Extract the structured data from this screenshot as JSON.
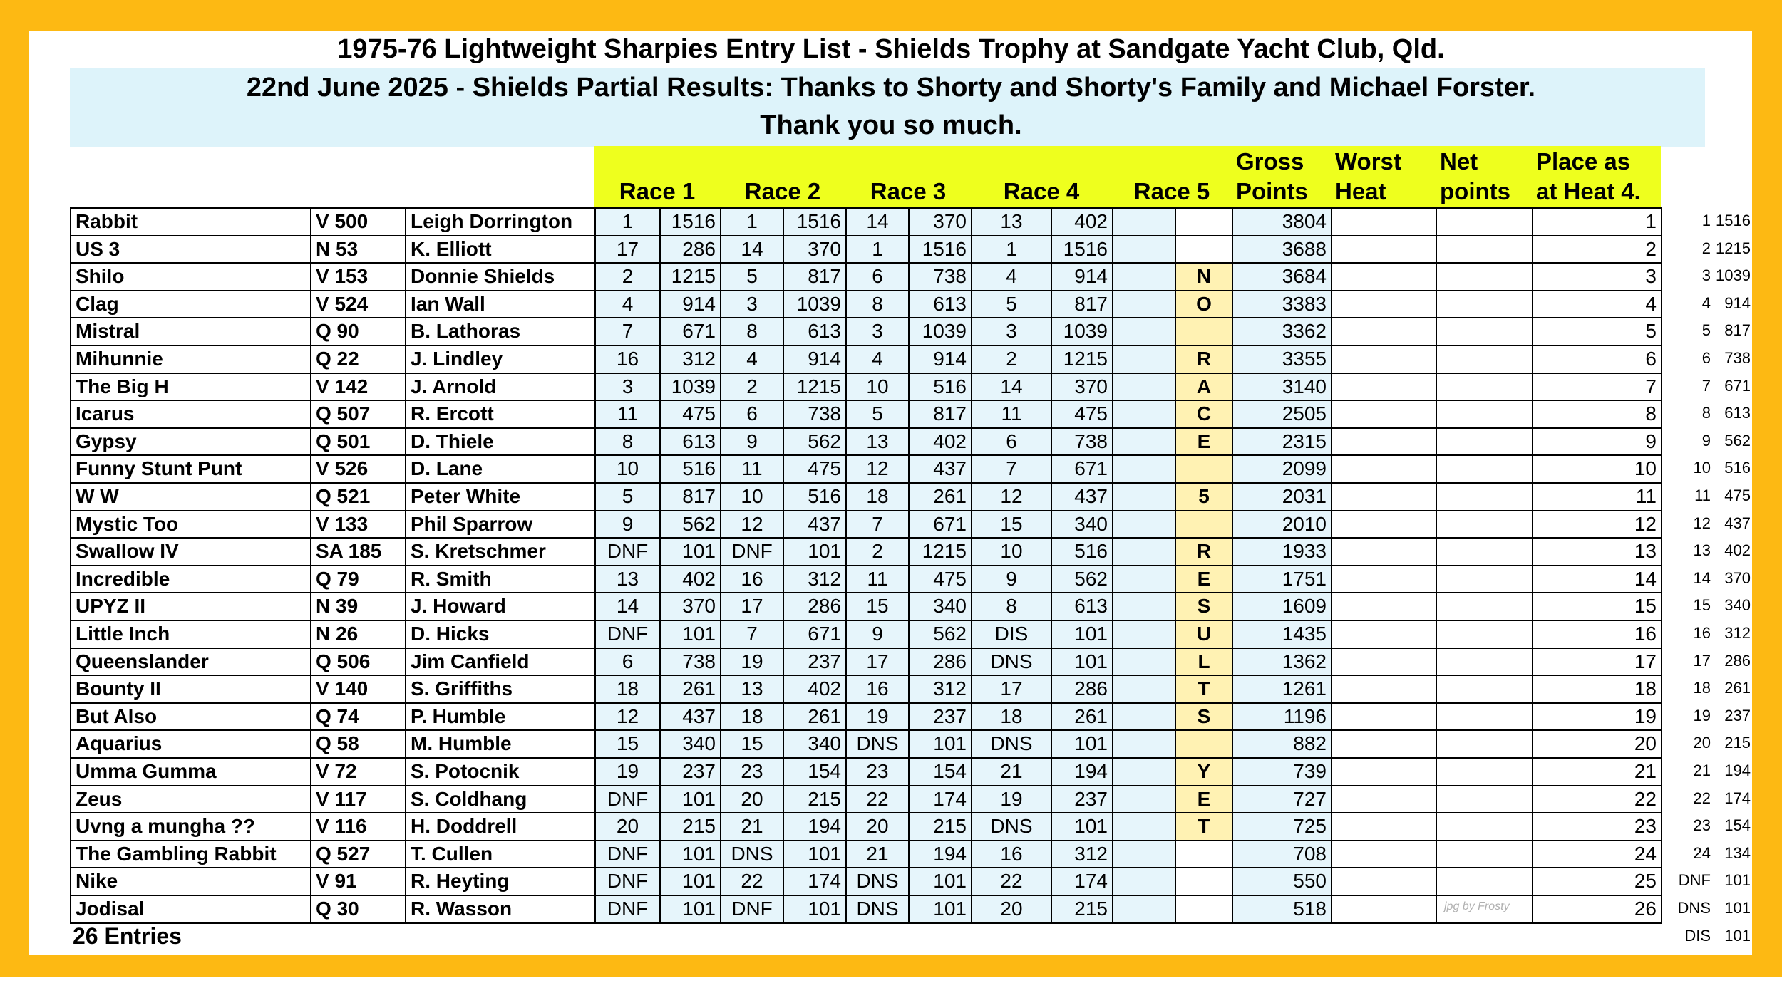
{
  "header": {
    "title": "1975-76 Lightweight Sharpies Entry List - Shields Trophy at Sandgate Yacht Club, Qld.",
    "subtitle": "22nd June 2025 - Shields Partial Results: Thanks to Shorty and Shorty's Family and Michael Forster.",
    "thanks": "Thank you so much."
  },
  "columns": {
    "races": [
      "Race 1",
      "Race 2",
      "Race 3",
      "Race 4",
      "Race 5"
    ],
    "gross": [
      "Gross",
      "Points"
    ],
    "worst": [
      "Worst",
      "Heat"
    ],
    "net": [
      "Net",
      "points"
    ],
    "place": [
      "Place as",
      "at Heat 4."
    ]
  },
  "rows": [
    [
      "Rabbit",
      "V 500",
      "Leigh Dorrington",
      1,
      1516,
      1,
      1516,
      14,
      370,
      13,
      402,
      null,
      3804,
      1
    ],
    [
      "US 3",
      "N 53",
      "K. Elliott",
      17,
      286,
      14,
      370,
      1,
      1516,
      1,
      1516,
      null,
      3688,
      2
    ],
    [
      "Shilo",
      "V 153",
      "Donnie Shields",
      2,
      1215,
      5,
      817,
      6,
      738,
      4,
      914,
      "N",
      3684,
      3
    ],
    [
      "Clag",
      "V 524",
      "Ian Wall",
      4,
      914,
      3,
      1039,
      8,
      613,
      5,
      817,
      "O",
      3383,
      4
    ],
    [
      "Mistral",
      "Q 90",
      "B. Lathoras",
      7,
      671,
      8,
      613,
      3,
      1039,
      3,
      1039,
      null,
      3362,
      5
    ],
    [
      "Mihunnie",
      "Q 22",
      "J. Lindley",
      16,
      312,
      4,
      914,
      4,
      914,
      2,
      1215,
      "R",
      3355,
      6
    ],
    [
      "The Big H",
      "V 142",
      "J. Arnold",
      3,
      1039,
      2,
      1215,
      10,
      516,
      14,
      370,
      "A",
      3140,
      7
    ],
    [
      "Icarus",
      "Q 507",
      "R. Ercott",
      11,
      475,
      6,
      738,
      5,
      817,
      11,
      475,
      "C",
      2505,
      8
    ],
    [
      "Gypsy",
      "Q 501",
      "D. Thiele",
      8,
      613,
      9,
      562,
      13,
      402,
      6,
      738,
      "E",
      2315,
      9
    ],
    [
      "Funny Stunt Punt",
      "V 526",
      "D. Lane",
      10,
      516,
      11,
      475,
      12,
      437,
      7,
      671,
      null,
      2099,
      10
    ],
    [
      "W W",
      "Q 521",
      "Peter White",
      5,
      817,
      10,
      516,
      18,
      261,
      12,
      437,
      "5",
      2031,
      11
    ],
    [
      "Mystic Too",
      "V 133",
      "Phil Sparrow",
      9,
      562,
      12,
      437,
      7,
      671,
      15,
      340,
      null,
      2010,
      12
    ],
    [
      "Swallow IV",
      "SA 185",
      "S. Kretschmer",
      "DNF",
      101,
      "DNF",
      101,
      2,
      1215,
      10,
      516,
      "R",
      1933,
      13
    ],
    [
      "Incredible",
      "Q 79",
      "R. Smith",
      13,
      402,
      16,
      312,
      11,
      475,
      9,
      562,
      "E",
      1751,
      14
    ],
    [
      "UPYZ II",
      "N 39",
      "J. Howard",
      14,
      370,
      17,
      286,
      15,
      340,
      8,
      613,
      "S",
      1609,
      15
    ],
    [
      "Little Inch",
      "N 26",
      "D. Hicks",
      "DNF",
      101,
      7,
      671,
      9,
      562,
      "DIS",
      101,
      "U",
      1435,
      16
    ],
    [
      "Queenslander",
      "Q 506",
      "Jim Canfield",
      6,
      738,
      19,
      237,
      17,
      286,
      "DNS",
      101,
      "L",
      1362,
      17
    ],
    [
      "Bounty II",
      "V 140",
      "S. Griffiths",
      18,
      261,
      13,
      402,
      16,
      312,
      17,
      286,
      "T",
      1261,
      18
    ],
    [
      "But Also",
      "Q 74",
      "P. Humble",
      12,
      437,
      18,
      261,
      19,
      237,
      18,
      261,
      "S",
      1196,
      19
    ],
    [
      "Aquarius",
      "Q 58",
      "M. Humble",
      15,
      340,
      15,
      340,
      "DNS",
      101,
      "DNS",
      101,
      null,
      882,
      20
    ],
    [
      "Umma Gumma",
      "V 72",
      "S. Potocnik",
      19,
      237,
      23,
      154,
      23,
      154,
      21,
      194,
      "Y",
      739,
      21
    ],
    [
      "Zeus",
      "V 117",
      "S. Coldhang",
      "DNF",
      101,
      20,
      215,
      22,
      174,
      19,
      237,
      "E",
      727,
      22
    ],
    [
      "Uvng a mungha ??",
      "V 116",
      "H. Doddrell",
      20,
      215,
      21,
      194,
      20,
      215,
      "DNS",
      101,
      "T",
      725,
      23
    ],
    [
      "The Gambling Rabbit",
      "Q 527",
      "T. Cullen",
      "DNF",
      101,
      "DNS",
      101,
      21,
      194,
      16,
      312,
      null,
      708,
      24
    ],
    [
      "Nike",
      "V 91",
      "R. Heyting",
      "DNF",
      101,
      22,
      174,
      "DNS",
      101,
      22,
      174,
      null,
      550,
      25
    ],
    [
      "Jodisal",
      "Q 30",
      "R. Wasson",
      "DNF",
      101,
      "DNF",
      101,
      "DNS",
      101,
      20,
      215,
      null,
      518,
      26
    ]
  ],
  "points_scale": [
    [
      1,
      1516
    ],
    [
      2,
      1215
    ],
    [
      3,
      1039
    ],
    [
      4,
      914
    ],
    [
      5,
      817
    ],
    [
      6,
      738
    ],
    [
      7,
      671
    ],
    [
      8,
      613
    ],
    [
      9,
      562
    ],
    [
      10,
      516
    ],
    [
      11,
      475
    ],
    [
      12,
      437
    ],
    [
      13,
      402
    ],
    [
      14,
      370
    ],
    [
      15,
      340
    ],
    [
      16,
      312
    ],
    [
      17,
      286
    ],
    [
      18,
      261
    ],
    [
      19,
      237
    ],
    [
      20,
      215
    ],
    [
      21,
      194
    ],
    [
      22,
      174
    ],
    [
      23,
      154
    ],
    [
      24,
      134
    ],
    [
      "DNF",
      101
    ],
    [
      "DNS",
      101
    ],
    [
      "DIS",
      101
    ]
  ],
  "footer": "26 Entries",
  "watermark": "jpg by Frosty"
}
